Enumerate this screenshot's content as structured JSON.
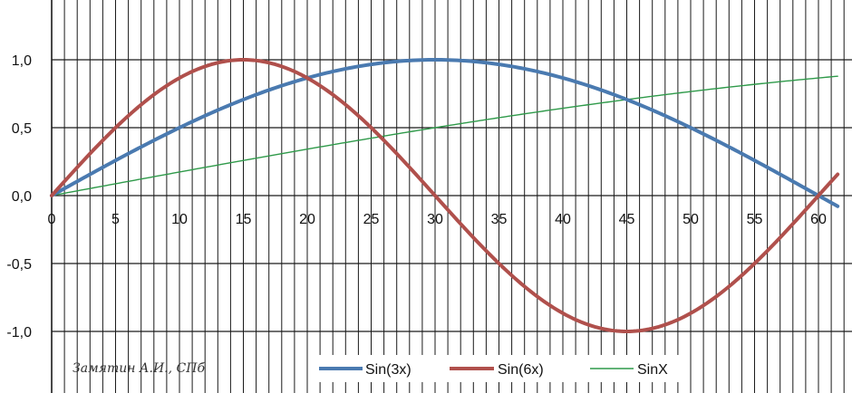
{
  "chart_data": {
    "type": "line",
    "title": "",
    "xlabel": "",
    "ylabel": "",
    "xlim": [
      0,
      62
    ],
    "ylim": [
      -1.5,
      1.2
    ],
    "x_ticks": [
      "0",
      "5",
      "10",
      "15",
      "20",
      "25",
      "30",
      "35",
      "40",
      "45",
      "50",
      "55",
      "60"
    ],
    "y_ticks": [
      "1,0",
      "0,5",
      "0,0",
      "-0,5",
      "-1,0"
    ],
    "grid": true,
    "legend_position": "bottom",
    "annotation": "Замятин А.И., СПб",
    "x": [
      0,
      5,
      10,
      15,
      20,
      25,
      30,
      35,
      40,
      45,
      50,
      55,
      60
    ],
    "series": [
      {
        "name": "Sin(3x)",
        "color": "#4a7ab0",
        "values": [
          0,
          0.26,
          0.5,
          0.71,
          0.87,
          0.97,
          1.0,
          0.97,
          0.87,
          0.71,
          0.5,
          0.26,
          0
        ]
      },
      {
        "name": "Sin(6x)",
        "color": "#b0504c",
        "values": [
          0,
          0.5,
          0.87,
          1.0,
          0.87,
          0.5,
          0,
          -0.5,
          -0.87,
          -1.0,
          -0.87,
          -0.5,
          0
        ]
      },
      {
        "name": "SinX",
        "color": "#2f9a4a",
        "values": [
          0,
          0.09,
          0.17,
          0.26,
          0.34,
          0.42,
          0.5,
          0.57,
          0.64,
          0.71,
          0.77,
          0.82,
          0.87
        ]
      }
    ]
  }
}
